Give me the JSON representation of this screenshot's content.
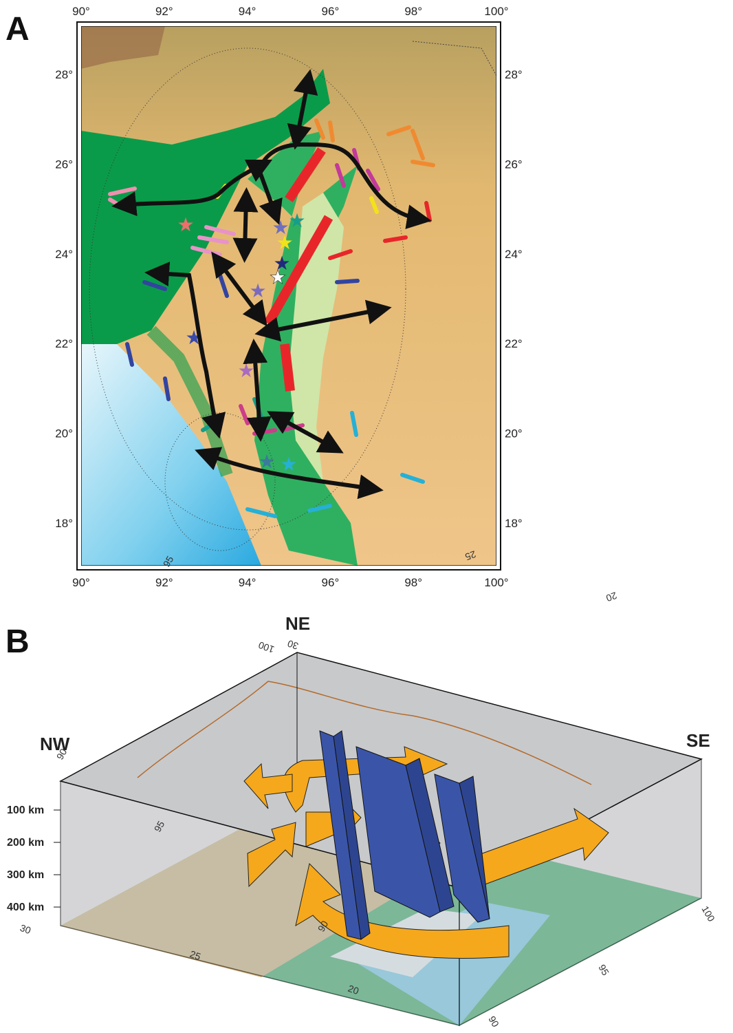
{
  "panel_a": {
    "label": "A",
    "lon_ticks": [
      "90°",
      "92°",
      "94°",
      "96°",
      "98°",
      "100°"
    ],
    "lat_ticks": [
      "18°",
      "20°",
      "22°",
      "24°",
      "26°",
      "28°"
    ]
  },
  "panel_b": {
    "label": "B",
    "directions": {
      "ne": "NE",
      "nw": "NW",
      "se": "SE"
    },
    "depth_labels": [
      "100 km",
      "200 km",
      "300 km",
      "400 km"
    ],
    "top_face_labels": [
      "100",
      "30",
      "25",
      "20",
      "95",
      "90"
    ],
    "floor_labels": [
      "30",
      "25",
      "20",
      "100",
      "95",
      "90",
      "95",
      "90"
    ]
  }
}
